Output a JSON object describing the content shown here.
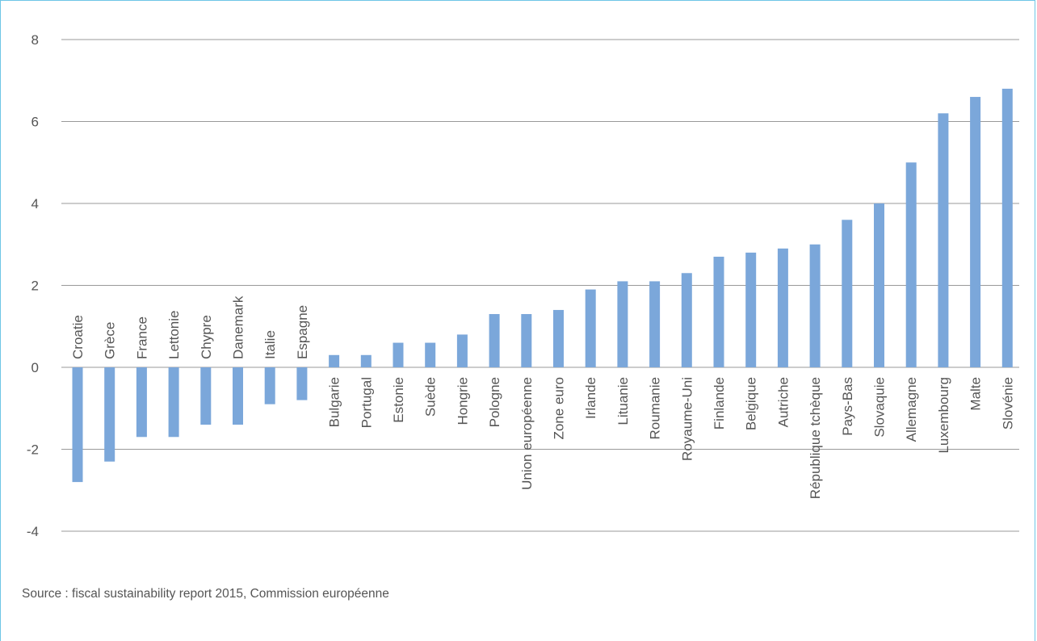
{
  "source_note": "Source : fiscal sustainability report 2015, Commission européenne",
  "colors": {
    "bar": "#7ba7da",
    "grid": "#999999",
    "axis_text": "#555555",
    "frame": "#6ec6e6"
  },
  "chart_data": {
    "type": "bar",
    "title": "",
    "xlabel": "",
    "ylabel": "",
    "ylim": [
      -4,
      8
    ],
    "yticks": [
      -4,
      -2,
      0,
      2,
      4,
      6,
      8
    ],
    "grid": true,
    "categories": [
      "Croatie",
      "Grèce",
      "France",
      "Lettonie",
      "Chypre",
      "Danemark",
      "Italie",
      "Espagne",
      "Bulgarie",
      "Portugal",
      "Estonie",
      "Suède",
      "Hongrie",
      "Pologne",
      "Union européenne",
      "Zone euro",
      "Irlande",
      "Lituanie",
      "Roumanie",
      "Royaume-Uni",
      "Finlande",
      "Belgique",
      "Autriche",
      "République tchèque",
      "Pays-Bas",
      "Slovaquie",
      "Allemagne",
      "Luxembourg",
      "Malte",
      "Slovénie"
    ],
    "values": [
      -2.8,
      -2.3,
      -1.7,
      -1.7,
      -1.4,
      -1.4,
      -0.9,
      -0.8,
      0.3,
      0.3,
      0.6,
      0.6,
      0.8,
      1.3,
      1.3,
      1.4,
      1.9,
      2.1,
      2.1,
      2.3,
      2.7,
      2.8,
      2.9,
      3.0,
      3.6,
      4.0,
      5.0,
      6.2,
      6.6,
      6.8
    ]
  }
}
